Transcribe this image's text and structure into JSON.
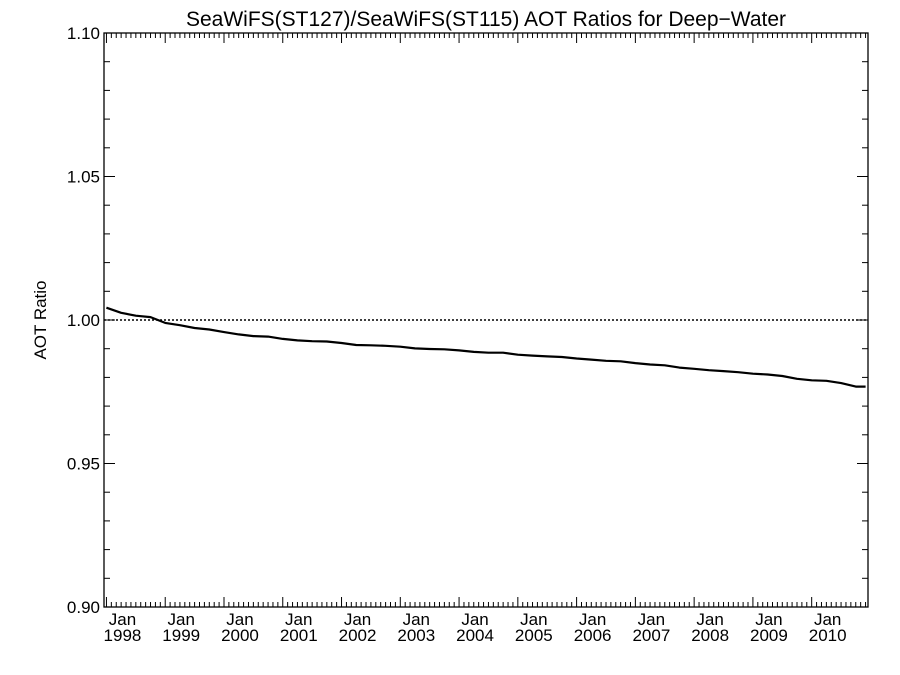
{
  "chart_data": {
    "type": "line",
    "title": "SeaWiFS(ST127)/SeaWiFS(ST115)  AOT Ratios for Deep−Water",
    "ylabel": "AOT Ratio",
    "xlabel": "",
    "ylim": [
      0.9,
      1.1
    ],
    "xlim": [
      "1998-01",
      "2010-12"
    ],
    "y_ticks": [
      "0.90",
      "0.95",
      "1.00",
      "1.05",
      "1.10"
    ],
    "y_dotted_ticks": [
      0.95,
      1.05
    ],
    "reference_line": 1.0,
    "x_tick_labels": [
      {
        "month": "Jan",
        "year": "1998"
      },
      {
        "month": "Jan",
        "year": "1999"
      },
      {
        "month": "Jan",
        "year": "2000"
      },
      {
        "month": "Jan",
        "year": "2001"
      },
      {
        "month": "Jan",
        "year": "2002"
      },
      {
        "month": "Jan",
        "year": "2003"
      },
      {
        "month": "Jan",
        "year": "2004"
      },
      {
        "month": "Jan",
        "year": "2005"
      },
      {
        "month": "Jan",
        "year": "2006"
      },
      {
        "month": "Jan",
        "year": "2007"
      },
      {
        "month": "Jan",
        "year": "2008"
      },
      {
        "month": "Jan",
        "year": "2009"
      },
      {
        "month": "Jan",
        "year": "2010"
      }
    ],
    "grid": false,
    "series": [
      {
        "color": "#000000",
        "points": [
          [
            "1998-01",
            1.0043
          ],
          [
            "1998-04",
            1.0025
          ],
          [
            "1998-07",
            1.0015
          ],
          [
            "1998-10",
            1.001
          ],
          [
            "1999-01",
            0.999
          ],
          [
            "1999-04",
            0.9982
          ],
          [
            "1999-07",
            0.9972
          ],
          [
            "1999-10",
            0.9967
          ],
          [
            "2000-01",
            0.9958
          ],
          [
            "2000-04",
            0.995
          ],
          [
            "2000-07",
            0.9944
          ],
          [
            "2000-10",
            0.9942
          ],
          [
            "2001-01",
            0.9934
          ],
          [
            "2001-04",
            0.9929
          ],
          [
            "2001-07",
            0.9926
          ],
          [
            "2001-10",
            0.9925
          ],
          [
            "2002-01",
            0.992
          ],
          [
            "2002-04",
            0.9913
          ],
          [
            "2002-07",
            0.9912
          ],
          [
            "2002-10",
            0.991
          ],
          [
            "2003-01",
            0.9907
          ],
          [
            "2003-04",
            0.9901
          ],
          [
            "2003-07",
            0.9899
          ],
          [
            "2003-10",
            0.9898
          ],
          [
            "2004-01",
            0.9894
          ],
          [
            "2004-04",
            0.9889
          ],
          [
            "2004-07",
            0.9886
          ],
          [
            "2004-10",
            0.9886
          ],
          [
            "2005-01",
            0.9879
          ],
          [
            "2005-04",
            0.9876
          ],
          [
            "2005-07",
            0.9873
          ],
          [
            "2005-10",
            0.9871
          ],
          [
            "2006-01",
            0.9866
          ],
          [
            "2006-04",
            0.9862
          ],
          [
            "2006-07",
            0.9858
          ],
          [
            "2006-10",
            0.9856
          ],
          [
            "2007-01",
            0.985
          ],
          [
            "2007-04",
            0.9845
          ],
          [
            "2007-07",
            0.9842
          ],
          [
            "2007-10",
            0.9834
          ],
          [
            "2008-01",
            0.983
          ],
          [
            "2008-04",
            0.9825
          ],
          [
            "2008-07",
            0.9822
          ],
          [
            "2008-10",
            0.9818
          ],
          [
            "2009-01",
            0.9813
          ],
          [
            "2009-04",
            0.981
          ],
          [
            "2009-07",
            0.9805
          ],
          [
            "2009-10",
            0.9795
          ],
          [
            "2010-01",
            0.979
          ],
          [
            "2010-04",
            0.9788
          ],
          [
            "2010-07",
            0.978
          ],
          [
            "2010-10",
            0.9768
          ],
          [
            "2010-12",
            0.9768
          ]
        ]
      }
    ]
  }
}
